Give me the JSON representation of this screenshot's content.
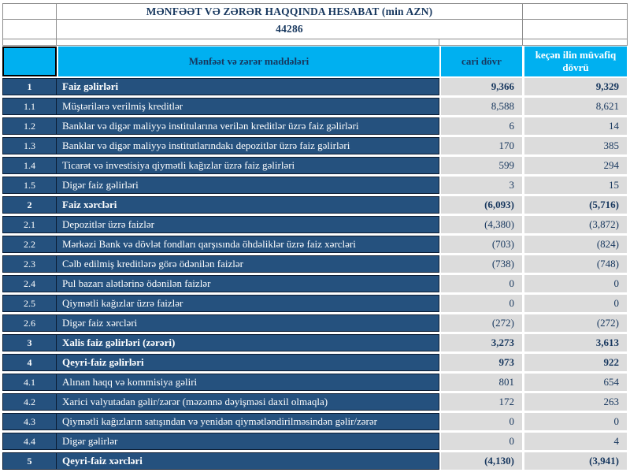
{
  "report": {
    "title": "MƏNFƏƏT VƏ ZƏRƏR HAQQINDA HESABAT (min AZN)",
    "code": "44286"
  },
  "columns": {
    "items_label": "Mənfəət və zərər maddələri",
    "current_label": "cari dövr",
    "previous_label": "keçən ilin müvafiq dövrü"
  },
  "colors": {
    "header_cyan": "#00B0F0",
    "row_navy": "#25517E",
    "value_gray": "#DCDCDC",
    "text_navy": "#17375E"
  },
  "rows": [
    {
      "no": "1",
      "label": "Faiz  gəlirləri",
      "current": "9,366",
      "previous": "9,329",
      "bold": true
    },
    {
      "no": "1.1",
      "label": "Müştərilərə verilmiş kreditlər",
      "current": "8,588",
      "previous": "8,621",
      "bold": false
    },
    {
      "no": "1.2",
      "label": "Banklar və digər maliyyə institularına verilən kreditlər üzrə faiz gəlirləri",
      "current": "6",
      "previous": "14",
      "bold": false
    },
    {
      "no": "1.3",
      "label": "Banklar və digər maliyyə institutlarındakı depozitlər üzrə faiz gəlirləri",
      "current": "170",
      "previous": "385",
      "bold": false
    },
    {
      "no": "1.4",
      "label": "Ticarət və investisiya qiymətli kağızlar üzrə faiz gəlirləri",
      "current": "599",
      "previous": "294",
      "bold": false
    },
    {
      "no": "1.5",
      "label": "Digər faiz gəlirləri",
      "current": "3",
      "previous": "15",
      "bold": false
    },
    {
      "no": "2",
      "label": "Faiz xərcləri",
      "current": "(6,093)",
      "previous": "(5,716)",
      "bold": true
    },
    {
      "no": "2.1",
      "label": "Depozitlər üzrə faizlər",
      "current": "(4,380)",
      "previous": "(3,872)",
      "bold": false
    },
    {
      "no": "2.2",
      "label": "Mərkəzi Bank və dövlət fondları qarşısında öhdəliklər üzrə faiz xərcləri",
      "current": "(703)",
      "previous": "(824)",
      "bold": false
    },
    {
      "no": "2.3",
      "label": "Cəlb edilmiş kreditlərə görə ödənilən faizlər",
      "current": "(738)",
      "previous": "(748)",
      "bold": false
    },
    {
      "no": "2.4",
      "label": "Pul bazarı alətlərinə ödənilən faizlər",
      "current": "0",
      "previous": "0",
      "bold": false
    },
    {
      "no": "2.5",
      "label": "Qiymətli kağızlar üzrə faizlər",
      "current": "0",
      "previous": "0",
      "bold": false
    },
    {
      "no": "2.6",
      "label": "Digər faiz xərcləri",
      "current": "(272)",
      "previous": "(272)",
      "bold": false
    },
    {
      "no": "3",
      "label": "Xalis faiz gəlirləri (zərəri)",
      "current": "3,273",
      "previous": "3,613",
      "bold": true
    },
    {
      "no": "4",
      "label": "Qeyri-faiz gəlirləri",
      "current": "973",
      "previous": "922",
      "bold": true
    },
    {
      "no": "4.1",
      "label": "Alınan haqq və kommisiya gəliri",
      "current": "801",
      "previous": "654",
      "bold": false
    },
    {
      "no": "4.2",
      "label": "Xarici valyutadan gəlir/zərər (məzənnə dəyişməsi daxil olmaqla)",
      "current": "172",
      "previous": "263",
      "bold": false
    },
    {
      "no": "4.3",
      "label": "Qiymətli kağızların satışından və yenidən qiymətləndirilməsindən gəlir/zərər",
      "current": "0",
      "previous": "0",
      "bold": false
    },
    {
      "no": "4.4",
      "label": "Digər gəlirlər",
      "current": "0",
      "previous": "4",
      "bold": false
    },
    {
      "no": "5",
      "label": "Qeyri-faiz xərcləri",
      "current": "(4,130)",
      "previous": "(3,941)",
      "bold": true
    }
  ]
}
